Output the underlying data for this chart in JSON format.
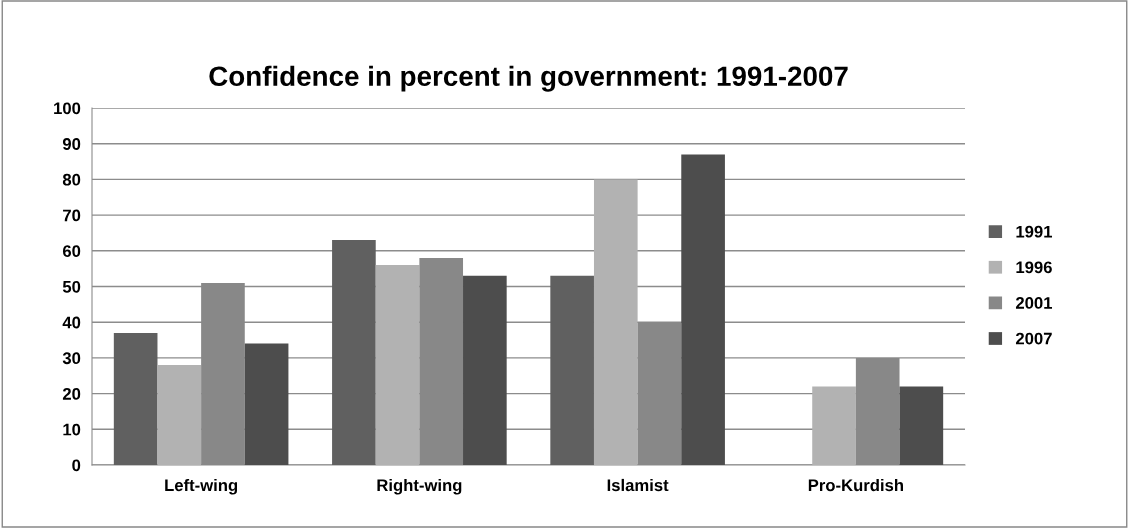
{
  "chart_data": {
    "type": "bar",
    "title": "Confidence in percent in government: 1991-2007",
    "categories": [
      "Left-wing",
      "Right-wing",
      "Islamist",
      "Pro-Kurdish"
    ],
    "series": [
      {
        "name": "1991",
        "color": "#606060",
        "values": [
          37,
          63,
          53,
          null
        ]
      },
      {
        "name": "1996",
        "color": "#b2b2b2",
        "values": [
          28,
          56,
          80,
          22
        ]
      },
      {
        "name": "2001",
        "color": "#888888",
        "values": [
          51,
          58,
          40,
          30
        ]
      },
      {
        "name": "2007",
        "color": "#4d4d4d",
        "values": [
          34,
          53,
          87,
          22
        ]
      }
    ],
    "ylim": [
      0,
      100
    ],
    "yticks": [
      0,
      10,
      20,
      30,
      40,
      50,
      60,
      70,
      80,
      90,
      100
    ],
    "grid": "y",
    "legend": "right"
  }
}
